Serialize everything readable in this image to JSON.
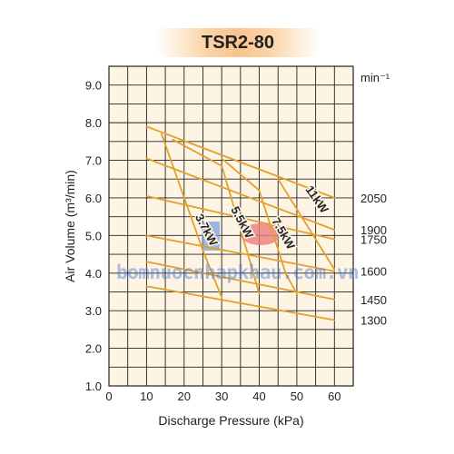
{
  "title": "TSR2-80",
  "watermark": "bomnuocnhapkhau.com.vn",
  "colors": {
    "plot_bg": "#fdf4e4",
    "grid": "#222222",
    "curve": "#e3a02a",
    "text": "#222222"
  },
  "chart_data": {
    "type": "line",
    "title": "TSR2-80",
    "xlabel": "Discharge Pressure  (kPa)",
    "ylabel": "Air Volume (m³/min)",
    "right_axis_label": "min⁻¹",
    "xlim": [
      0,
      65
    ],
    "ylim": [
      1.0,
      9.5
    ],
    "x_ticks": [
      "0",
      "10",
      "20",
      "30",
      "40",
      "50",
      "60"
    ],
    "y_ticks": [
      "1.0",
      "2.0",
      "3.0",
      "4.0",
      "5.0",
      "6.0",
      "7.0",
      "8.0",
      "9.0"
    ],
    "grid": true,
    "speed_curves": [
      {
        "label": "2050",
        "points": [
          [
            10,
            7.9
          ],
          [
            60,
            6.0
          ]
        ]
      },
      {
        "label": "1900",
        "points": [
          [
            10,
            7.05
          ],
          [
            60,
            5.15
          ]
        ]
      },
      {
        "label": "1750",
        "points": [
          [
            10,
            6.05
          ],
          [
            60,
            4.9
          ]
        ]
      },
      {
        "label": "1600",
        "points": [
          [
            10,
            5.0
          ],
          [
            60,
            4.05
          ]
        ]
      },
      {
        "label": "1450",
        "points": [
          [
            10,
            4.3
          ],
          [
            60,
            3.3
          ]
        ]
      },
      {
        "label": "1300",
        "points": [
          [
            10,
            3.65
          ],
          [
            60,
            2.75
          ]
        ]
      }
    ],
    "power_curves": [
      {
        "label": "3.7kW",
        "points": [
          [
            14,
            7.7
          ],
          [
            25,
            4.6
          ],
          [
            30,
            3.35
          ]
        ]
      },
      {
        "label": "5.5kW",
        "points": [
          [
            17,
            7.55
          ],
          [
            30,
            6.85
          ],
          [
            37,
            4.5
          ],
          [
            40,
            3.45
          ]
        ]
      },
      {
        "label": "7.5kW",
        "points": [
          [
            30,
            7.05
          ],
          [
            40,
            6.2
          ],
          [
            47,
            4.0
          ],
          [
            50,
            3.45
          ]
        ]
      },
      {
        "label": "11kW",
        "points": [
          [
            45,
            6.5
          ],
          [
            60,
            4.1
          ]
        ]
      }
    ]
  }
}
